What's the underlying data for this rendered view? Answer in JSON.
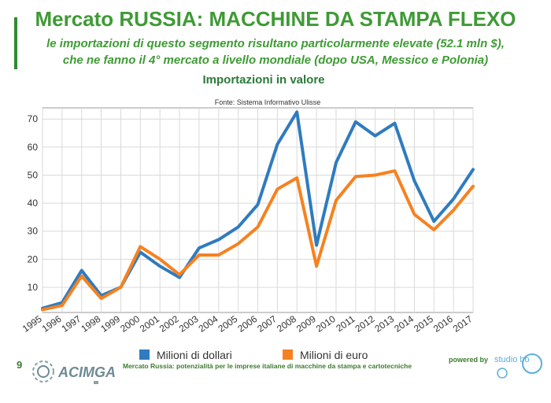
{
  "slide": {
    "title": "Mercato RUSSIA: MACCHINE DA STAMPA FLEXO",
    "subtitle_line1": "le importazioni di questo segmento risultano particolarmente elevate (52.1 mln $),",
    "subtitle_line2": "che ne fanno il 4° mercato a livello mondiale (dopo USA, Messico e Polonia)"
  },
  "footer": {
    "page_number": "9",
    "logo_text": "ACIMGA",
    "text": "Mercato Russia: potenzialità per le imprese italiane di macchine da stampa e cartotecniche",
    "powered_by": "powered by",
    "partner_logo_text": "studio bo"
  },
  "colors": {
    "accent": "#3f9a35",
    "series_dollars": "#2f7bbf",
    "series_euro": "#f58220"
  },
  "chart_data": {
    "type": "line",
    "title": "Importazioni in valore",
    "subtitle": "Fonte: Sistema Informativo Ulisse",
    "xlabel": "",
    "ylabel": "",
    "x": [
      "1995",
      "1996",
      "1997",
      "1998",
      "1999",
      "2000",
      "2001",
      "2002",
      "2003",
      "2004",
      "2005",
      "2006",
      "2007",
      "2008",
      "2009",
      "2010",
      "2011",
      "2012",
      "2013",
      "2014",
      "2015",
      "2016",
      "2017"
    ],
    "series": [
      {
        "name": "Milioni di dollari",
        "color": "#2f7bbf",
        "values": [
          2.5,
          4.5,
          16,
          7,
          10,
          22.5,
          17.5,
          13.5,
          24,
          27,
          31.5,
          39.5,
          61,
          72.5,
          25,
          54.5,
          69,
          64,
          68.5,
          48,
          33.5,
          41.5,
          52
        ]
      },
      {
        "name": "Milioni di euro",
        "color": "#f58220",
        "values": [
          2,
          3.5,
          14,
          6,
          10,
          24.5,
          20,
          14.5,
          21.5,
          21.5,
          25.5,
          31.5,
          45,
          49,
          17.5,
          41,
          49.5,
          50,
          51.5,
          36,
          30.5,
          37.5,
          46
        ]
      }
    ],
    "yticks": [
      10,
      20,
      30,
      40,
      50,
      60,
      70
    ],
    "ylim": [
      1,
      74
    ],
    "grid": true,
    "legend_position": "bottom"
  }
}
